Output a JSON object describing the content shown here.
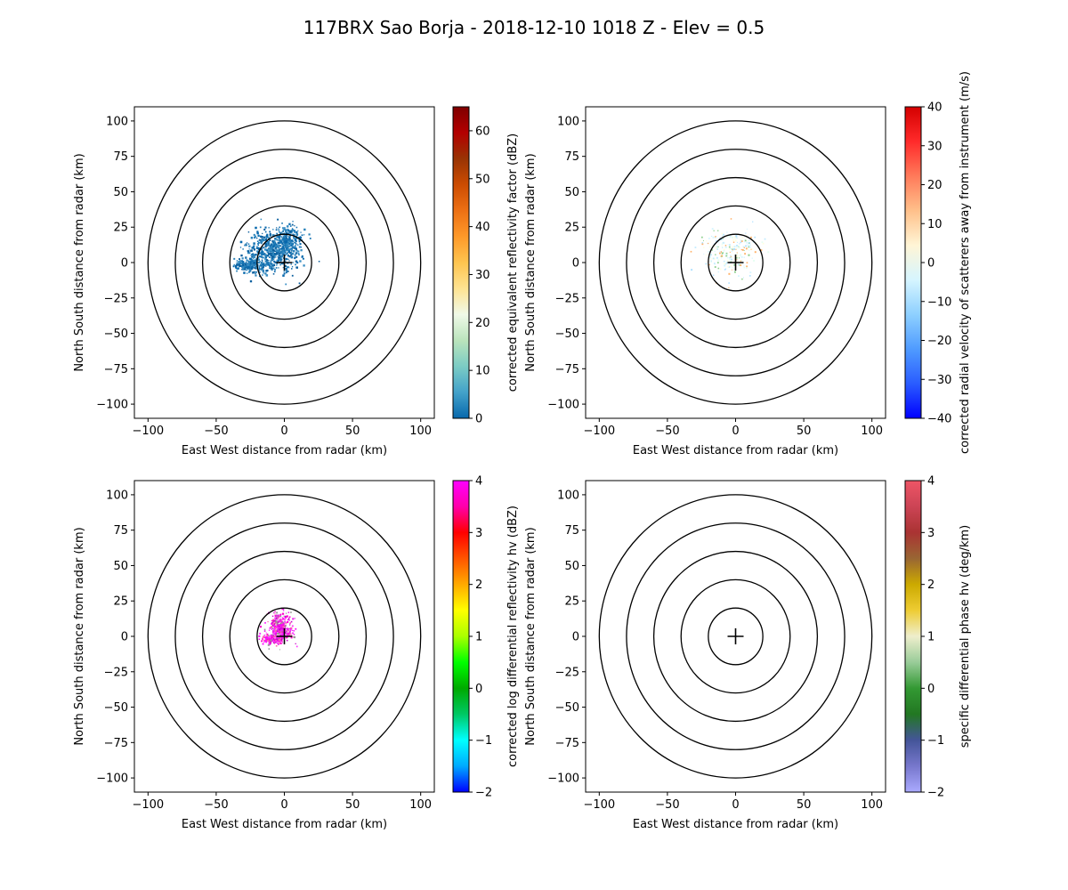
{
  "figure": {
    "title": "117BRX Sao Borja - 2018-12-10 1018 Z -  Elev = 0.5"
  },
  "chart_data": [
    {
      "type": "radar_ppi",
      "panel": "top-left",
      "field": "corrected equivalent reflectivity factor",
      "xlabel": "East West distance from radar (km)",
      "ylabel": "North South distance from radar (km)",
      "xlim": [
        -110,
        110
      ],
      "ylim": [
        -110,
        110
      ],
      "xticks": [
        -100,
        -50,
        0,
        50,
        100
      ],
      "yticks": [
        -100,
        -75,
        -50,
        -25,
        0,
        25,
        50,
        75,
        100
      ],
      "range_rings_km": [
        20,
        40,
        60,
        80,
        100
      ],
      "radar_location": [
        0,
        0
      ],
      "echo_extent": "echoes within roughly 35 km of the radar, mostly west and north of the site",
      "colorbar": {
        "label": "corrected equivalent reflectivity factor (dBZ)",
        "min": 0,
        "max": 65,
        "ticks": [
          0,
          10,
          20,
          30,
          40,
          50,
          60
        ],
        "cmap": [
          "#0868ac",
          "#43a2ca",
          "#7bccc4",
          "#bae4bc",
          "#f0f9e8",
          "#fee391",
          "#fec44f",
          "#fe9929",
          "#ec7014",
          "#cc4c02",
          "#993404",
          "#b30000",
          "#7f0000"
        ]
      }
    },
    {
      "type": "radar_ppi",
      "panel": "top-right",
      "field": "corrected radial velocity",
      "xlabel": "East West distance from radar (km)",
      "ylabel": "North South distance from radar (km)",
      "xlim": [
        -110,
        110
      ],
      "ylim": [
        -110,
        110
      ],
      "xticks": [
        -100,
        -50,
        0,
        50,
        100
      ],
      "yticks": [
        -100,
        -75,
        -50,
        -25,
        0,
        25,
        50,
        75,
        100
      ],
      "range_rings_km": [
        20,
        40,
        60,
        80,
        100
      ],
      "radar_location": [
        0,
        0
      ],
      "echo_extent": "sparse, faint echoes within roughly 30 km of the radar",
      "colorbar": {
        "label": "corrected radial velocity of scatterers away from instrument (m/s)",
        "min": -40,
        "max": 40,
        "ticks": [
          -40,
          -30,
          -20,
          -10,
          0,
          10,
          20,
          30,
          40
        ],
        "cmap": [
          "#0000ff",
          "#2a5cff",
          "#4f9bff",
          "#8ed0ff",
          "#d6f5ff",
          "#fff5d6",
          "#ffc08a",
          "#ff7a5a",
          "#ff2a2a",
          "#d40000"
        ]
      }
    },
    {
      "type": "radar_ppi",
      "panel": "bottom-left",
      "field": "corrected log differential reflectivity",
      "xlabel": "East West distance from radar (km)",
      "ylabel": "North South distance from radar (km)",
      "xlim": [
        -110,
        110
      ],
      "ylim": [
        -110,
        110
      ],
      "xticks": [
        -100,
        -50,
        0,
        50,
        100
      ],
      "yticks": [
        -100,
        -75,
        -50,
        -25,
        0,
        25,
        50,
        75,
        100
      ],
      "range_rings_km": [
        20,
        40,
        60,
        80,
        100
      ],
      "radar_location": [
        0,
        0
      ],
      "echo_extent": "dense echoes within roughly 15 km of the radar",
      "colorbar": {
        "label": "corrected log differential reflectivity hv (dBZ)",
        "min": -2,
        "max": 4,
        "ticks": [
          -2,
          -1,
          0,
          1,
          2,
          3,
          4
        ],
        "cmap": [
          "#0000ff",
          "#00aaff",
          "#00ffff",
          "#00c864",
          "#00aa00",
          "#00ff00",
          "#aaff00",
          "#ffff00",
          "#ffaa00",
          "#ff5500",
          "#ff0000",
          "#ff00aa",
          "#ff00ff"
        ]
      }
    },
    {
      "type": "radar_ppi",
      "panel": "bottom-right",
      "field": "specific differential phase",
      "xlabel": "East West distance from radar (km)",
      "ylabel": "North South distance from radar (km)",
      "xlim": [
        -110,
        110
      ],
      "ylim": [
        -110,
        110
      ],
      "xticks": [
        -100,
        -50,
        0,
        50,
        100
      ],
      "yticks": [
        -100,
        -75,
        -50,
        -25,
        0,
        25,
        50,
        75,
        100
      ],
      "range_rings_km": [
        20,
        40,
        60,
        80,
        100
      ],
      "radar_location": [
        0,
        0
      ],
      "echo_extent": "no visible echoes",
      "colorbar": {
        "label": "specific differential phase hv (deg/km)",
        "min": -2,
        "max": 4,
        "ticks": [
          -2,
          -1,
          0,
          1,
          2,
          3,
          4
        ],
        "cmap": [
          "#aaaaff",
          "#7777cc",
          "#445599",
          "#227722",
          "#339933",
          "#99cc99",
          "#eeeecc",
          "#eecc33",
          "#ccaa00",
          "#996633",
          "#aa3333",
          "#cc4455",
          "#ee5566"
        ]
      }
    }
  ]
}
